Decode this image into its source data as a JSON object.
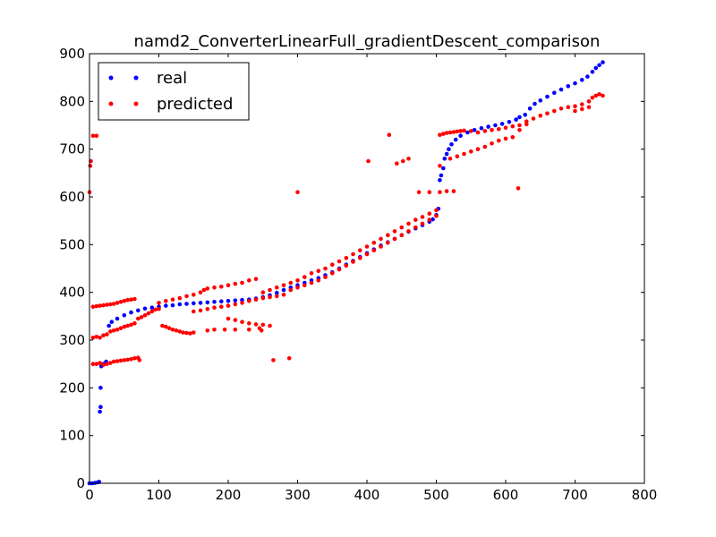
{
  "chart_data": {
    "type": "scatter",
    "title": "namd2_ConverterLinearFull_gradientDescent_comparison",
    "xlabel": "",
    "ylabel": "",
    "xlim": [
      0,
      800
    ],
    "ylim": [
      0,
      900
    ],
    "xticks": [
      "0",
      "100",
      "200",
      "300",
      "400",
      "500",
      "600",
      "700",
      "800"
    ],
    "yticks": [
      "0",
      "100",
      "200",
      "300",
      "400",
      "500",
      "600",
      "700",
      "800",
      "900"
    ],
    "grid": false,
    "legend_position": "top-left",
    "series": [
      {
        "name": "real",
        "color": "#0000ff",
        "points": [
          [
            0,
            0
          ],
          [
            4,
            0
          ],
          [
            8,
            1
          ],
          [
            12,
            2
          ],
          [
            14,
            3
          ],
          [
            15,
            150
          ],
          [
            16,
            160
          ],
          [
            16,
            200
          ],
          [
            17,
            245
          ],
          [
            20,
            250
          ],
          [
            24,
            255
          ],
          [
            28,
            330
          ],
          [
            32,
            338
          ],
          [
            40,
            345
          ],
          [
            50,
            352
          ],
          [
            60,
            358
          ],
          [
            70,
            362
          ],
          [
            80,
            366
          ],
          [
            90,
            368
          ],
          [
            100,
            370
          ],
          [
            110,
            372
          ],
          [
            120,
            373
          ],
          [
            130,
            375
          ],
          [
            140,
            376
          ],
          [
            150,
            377
          ],
          [
            160,
            378
          ],
          [
            170,
            379
          ],
          [
            180,
            380
          ],
          [
            190,
            381
          ],
          [
            200,
            382
          ],
          [
            210,
            383
          ],
          [
            220,
            384
          ],
          [
            230,
            385
          ],
          [
            240,
            387
          ],
          [
            250,
            390
          ],
          [
            260,
            394
          ],
          [
            270,
            399
          ],
          [
            280,
            405
          ],
          [
            290,
            410
          ],
          [
            300,
            415
          ],
          [
            310,
            420
          ],
          [
            320,
            425
          ],
          [
            330,
            430
          ],
          [
            340,
            436
          ],
          [
            350,
            442
          ],
          [
            360,
            450
          ],
          [
            370,
            458
          ],
          [
            380,
            466
          ],
          [
            390,
            474
          ],
          [
            400,
            482
          ],
          [
            410,
            490
          ],
          [
            420,
            498
          ],
          [
            430,
            505
          ],
          [
            440,
            512
          ],
          [
            450,
            520
          ],
          [
            460,
            527
          ],
          [
            470,
            534
          ],
          [
            480,
            541
          ],
          [
            490,
            548
          ],
          [
            495,
            553
          ],
          [
            500,
            562
          ],
          [
            503,
            575
          ],
          [
            505,
            635
          ],
          [
            507,
            645
          ],
          [
            510,
            660
          ],
          [
            512,
            680
          ],
          [
            515,
            690
          ],
          [
            518,
            700
          ],
          [
            522,
            710
          ],
          [
            528,
            720
          ],
          [
            535,
            728
          ],
          [
            545,
            735
          ],
          [
            555,
            740
          ],
          [
            565,
            744
          ],
          [
            575,
            747
          ],
          [
            585,
            750
          ],
          [
            595,
            753
          ],
          [
            605,
            757
          ],
          [
            615,
            762
          ],
          [
            620,
            767
          ],
          [
            628,
            772
          ],
          [
            635,
            785
          ],
          [
            642,
            795
          ],
          [
            650,
            802
          ],
          [
            660,
            810
          ],
          [
            670,
            818
          ],
          [
            680,
            825
          ],
          [
            690,
            832
          ],
          [
            700,
            838
          ],
          [
            710,
            845
          ],
          [
            718,
            852
          ],
          [
            725,
            862
          ],
          [
            730,
            870
          ],
          [
            735,
            876
          ],
          [
            740,
            882
          ]
        ]
      },
      {
        "name": "predicted",
        "color": "#ff0000",
        "points": [
          [
            0,
            610
          ],
          [
            1,
            665
          ],
          [
            2,
            675
          ],
          [
            5,
            728
          ],
          [
            10,
            728
          ],
          [
            5,
            250
          ],
          [
            10,
            250
          ],
          [
            15,
            252
          ],
          [
            20,
            248
          ],
          [
            25,
            250
          ],
          [
            30,
            252
          ],
          [
            35,
            255
          ],
          [
            40,
            256
          ],
          [
            45,
            257
          ],
          [
            50,
            258
          ],
          [
            55,
            259
          ],
          [
            60,
            260
          ],
          [
            65,
            262
          ],
          [
            70,
            263
          ],
          [
            72,
            258
          ],
          [
            5,
            305
          ],
          [
            10,
            307
          ],
          [
            15,
            305
          ],
          [
            20,
            310
          ],
          [
            25,
            312
          ],
          [
            30,
            318
          ],
          [
            35,
            320
          ],
          [
            40,
            322
          ],
          [
            45,
            325
          ],
          [
            50,
            328
          ],
          [
            55,
            330
          ],
          [
            60,
            332
          ],
          [
            65,
            335
          ],
          [
            5,
            370
          ],
          [
            10,
            371
          ],
          [
            15,
            372
          ],
          [
            20,
            373
          ],
          [
            25,
            374
          ],
          [
            30,
            375
          ],
          [
            35,
            376
          ],
          [
            40,
            378
          ],
          [
            45,
            380
          ],
          [
            50,
            382
          ],
          [
            55,
            384
          ],
          [
            60,
            385
          ],
          [
            65,
            386
          ],
          [
            70,
            345
          ],
          [
            75,
            348
          ],
          [
            80,
            352
          ],
          [
            85,
            356
          ],
          [
            90,
            360
          ],
          [
            95,
            364
          ],
          [
            100,
            365
          ],
          [
            105,
            330
          ],
          [
            110,
            328
          ],
          [
            115,
            325
          ],
          [
            120,
            322
          ],
          [
            125,
            320
          ],
          [
            130,
            318
          ],
          [
            135,
            316
          ],
          [
            140,
            315
          ],
          [
            145,
            314
          ],
          [
            150,
            316
          ],
          [
            100,
            378
          ],
          [
            110,
            382
          ],
          [
            120,
            385
          ],
          [
            130,
            388
          ],
          [
            140,
            392
          ],
          [
            150,
            395
          ],
          [
            160,
            400
          ],
          [
            165,
            405
          ],
          [
            170,
            408
          ],
          [
            180,
            410
          ],
          [
            190,
            412
          ],
          [
            200,
            415
          ],
          [
            210,
            418
          ],
          [
            220,
            420
          ],
          [
            230,
            425
          ],
          [
            240,
            428
          ],
          [
            150,
            360
          ],
          [
            160,
            362
          ],
          [
            170,
            365
          ],
          [
            180,
            368
          ],
          [
            190,
            370
          ],
          [
            200,
            372
          ],
          [
            210,
            375
          ],
          [
            220,
            378
          ],
          [
            230,
            382
          ],
          [
            240,
            385
          ],
          [
            250,
            388
          ],
          [
            260,
            390
          ],
          [
            270,
            392
          ],
          [
            280,
            395
          ],
          [
            200,
            345
          ],
          [
            210,
            342
          ],
          [
            220,
            338
          ],
          [
            230,
            335
          ],
          [
            240,
            333
          ],
          [
            250,
            332
          ],
          [
            260,
            330
          ],
          [
            170,
            320
          ],
          [
            180,
            322
          ],
          [
            195,
            322
          ],
          [
            210,
            322
          ],
          [
            230,
            322
          ],
          [
            245,
            325
          ],
          [
            248,
            320
          ],
          [
            265,
            258
          ],
          [
            288,
            262
          ],
          [
            300,
            610
          ],
          [
            250,
            400
          ],
          [
            260,
            405
          ],
          [
            270,
            410
          ],
          [
            280,
            415
          ],
          [
            290,
            420
          ],
          [
            300,
            425
          ],
          [
            310,
            432
          ],
          [
            320,
            440
          ],
          [
            330,
            445
          ],
          [
            290,
            405
          ],
          [
            300,
            410
          ],
          [
            310,
            415
          ],
          [
            320,
            420
          ],
          [
            330,
            425
          ],
          [
            340,
            432
          ],
          [
            350,
            440
          ],
          [
            360,
            448
          ],
          [
            370,
            456
          ],
          [
            380,
            464
          ],
          [
            390,
            472
          ],
          [
            400,
            480
          ],
          [
            410,
            488
          ],
          [
            420,
            496
          ],
          [
            430,
            504
          ],
          [
            440,
            512
          ],
          [
            450,
            520
          ],
          [
            460,
            528
          ],
          [
            470,
            536
          ],
          [
            480,
            544
          ],
          [
            490,
            552
          ],
          [
            500,
            560
          ],
          [
            340,
            450
          ],
          [
            350,
            458
          ],
          [
            360,
            465
          ],
          [
            370,
            472
          ],
          [
            380,
            480
          ],
          [
            390,
            488
          ],
          [
            400,
            496
          ],
          [
            410,
            504
          ],
          [
            420,
            512
          ],
          [
            430,
            520
          ],
          [
            440,
            528
          ],
          [
            450,
            536
          ],
          [
            460,
            544
          ],
          [
            470,
            552
          ],
          [
            480,
            558
          ],
          [
            490,
            565
          ],
          [
            500,
            572
          ],
          [
            402,
            675
          ],
          [
            432,
            730
          ],
          [
            443,
            670
          ],
          [
            452,
            675
          ],
          [
            460,
            680
          ],
          [
            475,
            610
          ],
          [
            490,
            610
          ],
          [
            505,
            610
          ],
          [
            515,
            612
          ],
          [
            525,
            612
          ],
          [
            505,
            665
          ],
          [
            505,
            730
          ],
          [
            510,
            732
          ],
          [
            515,
            734
          ],
          [
            520,
            735
          ],
          [
            525,
            736
          ],
          [
            530,
            737
          ],
          [
            535,
            738
          ],
          [
            540,
            739
          ],
          [
            520,
            680
          ],
          [
            530,
            685
          ],
          [
            540,
            690
          ],
          [
            550,
            695
          ],
          [
            560,
            700
          ],
          [
            570,
            705
          ],
          [
            580,
            712
          ],
          [
            590,
            718
          ],
          [
            600,
            722
          ],
          [
            610,
            725
          ],
          [
            550,
            738
          ],
          [
            560,
            735
          ],
          [
            570,
            738
          ],
          [
            580,
            740
          ],
          [
            590,
            742
          ],
          [
            600,
            745
          ],
          [
            610,
            748
          ],
          [
            620,
            750
          ],
          [
            630,
            752
          ],
          [
            618,
            618
          ],
          [
            620,
            740
          ],
          [
            630,
            758
          ],
          [
            640,
            764
          ],
          [
            650,
            770
          ],
          [
            660,
            775
          ],
          [
            670,
            780
          ],
          [
            680,
            785
          ],
          [
            690,
            788
          ],
          [
            700,
            790
          ],
          [
            710,
            794
          ],
          [
            720,
            800
          ],
          [
            700,
            780
          ],
          [
            710,
            784
          ],
          [
            720,
            788
          ],
          [
            725,
            808
          ],
          [
            730,
            812
          ],
          [
            735,
            815
          ],
          [
            740,
            812
          ]
        ]
      }
    ]
  }
}
